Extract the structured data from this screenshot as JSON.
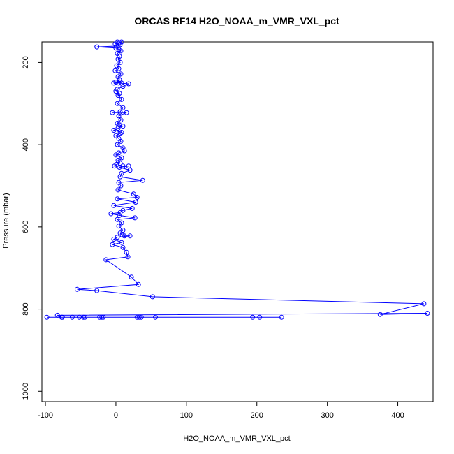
{
  "chart_data": {
    "type": "line",
    "title": "ORCAS RF14 H2O_NOAA_m_VMR_VXL_pct",
    "xlabel": "H2O_NOAA_m_VMR_VXL_pct",
    "ylabel": "Pressure (mbar)",
    "xlim": [
      -105,
      450
    ],
    "ylim": [
      1025,
      150
    ],
    "y_reversed": true,
    "grid": false,
    "x_ticks": [
      -100,
      0,
      100,
      200,
      300,
      400
    ],
    "y_ticks": [
      200,
      400,
      600,
      800,
      1000
    ],
    "series": [
      {
        "color": "#0000ff",
        "marker": "open-circle",
        "points": [
          [
            2,
            150
          ],
          [
            8,
            150
          ],
          [
            5,
            152
          ],
          [
            -1,
            155
          ],
          [
            6,
            157
          ],
          [
            3,
            160
          ],
          [
            -27,
            162
          ],
          [
            0,
            165
          ],
          [
            4,
            168
          ],
          [
            7,
            172
          ],
          [
            2,
            178
          ],
          [
            5,
            185
          ],
          [
            3,
            192
          ],
          [
            6,
            200
          ],
          [
            1,
            208
          ],
          [
            4,
            215
          ],
          [
            -1,
            220
          ],
          [
            7,
            228
          ],
          [
            3,
            235
          ],
          [
            5,
            242
          ],
          [
            0,
            248
          ],
          [
            8,
            250
          ],
          [
            -3,
            250
          ],
          [
            4,
            250
          ],
          [
            18,
            252
          ],
          [
            10,
            258
          ],
          [
            2,
            265
          ],
          [
            0,
            270
          ],
          [
            5,
            275
          ],
          [
            3,
            280
          ],
          [
            8,
            290
          ],
          [
            2,
            300
          ],
          [
            10,
            310
          ],
          [
            6,
            320
          ],
          [
            -5,
            322
          ],
          [
            15,
            322
          ],
          [
            4,
            330
          ],
          [
            7,
            340
          ],
          [
            2,
            348
          ],
          [
            5,
            352
          ],
          [
            10,
            355
          ],
          [
            3,
            360
          ],
          [
            -3,
            365
          ],
          [
            8,
            370
          ],
          [
            6,
            372
          ],
          [
            0,
            378
          ],
          [
            4,
            385
          ],
          [
            7,
            392
          ],
          [
            2,
            400
          ],
          [
            10,
            408
          ],
          [
            12,
            415
          ],
          [
            4,
            420
          ],
          [
            0,
            425
          ],
          [
            8,
            432
          ],
          [
            3,
            438
          ],
          [
            6,
            445
          ],
          [
            1,
            448
          ],
          [
            -2,
            452
          ],
          [
            10,
            452
          ],
          [
            18,
            452
          ],
          [
            5,
            455
          ],
          [
            20,
            462
          ],
          [
            8,
            470
          ],
          [
            6,
            478
          ],
          [
            38,
            487
          ],
          [
            4,
            492
          ],
          [
            7,
            500
          ],
          [
            3,
            510
          ],
          [
            25,
            520
          ],
          [
            30,
            528
          ],
          [
            2,
            532
          ],
          [
            28,
            540
          ],
          [
            -3,
            548
          ],
          [
            23,
            555
          ],
          [
            10,
            560
          ],
          [
            6,
            565
          ],
          [
            -7,
            568
          ],
          [
            5,
            572
          ],
          [
            27,
            578
          ],
          [
            2,
            582
          ],
          [
            8,
            590
          ],
          [
            4,
            598
          ],
          [
            10,
            608
          ],
          [
            6,
            615
          ],
          [
            9,
            620
          ],
          [
            12,
            622
          ],
          [
            20,
            622
          ],
          [
            2,
            625
          ],
          [
            -3,
            630
          ],
          [
            8,
            638
          ],
          [
            -5,
            643
          ],
          [
            10,
            650
          ],
          [
            15,
            662
          ],
          [
            17,
            673
          ],
          [
            -14,
            680
          ],
          [
            22,
            722
          ],
          [
            32,
            740
          ],
          [
            -55,
            752
          ],
          [
            -27,
            755
          ],
          [
            52,
            770
          ],
          [
            437,
            787
          ],
          [
            375,
            813
          ],
          [
            442,
            810
          ],
          [
            -83,
            815
          ],
          [
            -77,
            820
          ],
          [
            -98,
            820
          ],
          [
            -62,
            820
          ],
          [
            -52,
            820
          ],
          [
            -46,
            820
          ],
          [
            -44,
            820
          ],
          [
            -23,
            820
          ],
          [
            -20,
            820
          ],
          [
            -18,
            820
          ],
          [
            30,
            820
          ],
          [
            33,
            820
          ],
          [
            36,
            820
          ],
          [
            56,
            820
          ],
          [
            194,
            820
          ],
          [
            204,
            820
          ],
          [
            235,
            820
          ],
          [
            -76,
            820
          ]
        ]
      }
    ]
  }
}
